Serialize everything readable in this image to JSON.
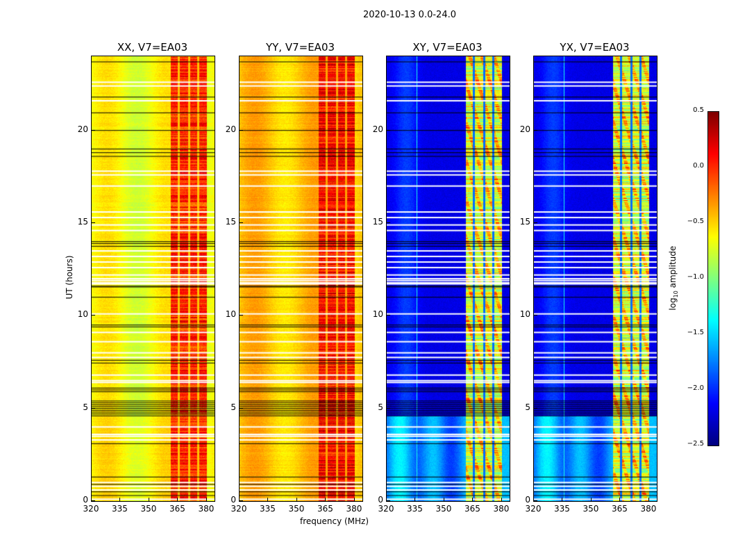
{
  "chart_data": {
    "type": "heatmap",
    "title": "2020-10-13 0.0-24.0",
    "xlabel": "frequency (MHz)",
    "ylabel": "UT (hours)",
    "xlim": [
      320,
      384
    ],
    "ylim": [
      0,
      24
    ],
    "xticks": [
      "320",
      "335",
      "350",
      "365",
      "380"
    ],
    "xtick_values": [
      320,
      335,
      350,
      365,
      380
    ],
    "yticks": [
      "0",
      "5",
      "10",
      "15",
      "20"
    ],
    "ytick_values": [
      0,
      5,
      10,
      15,
      20
    ],
    "colormap": "jet",
    "colorbar": {
      "label": "log10 amplitude",
      "label_main": "log",
      "label_sub": "10",
      "label_rest": " amplitude",
      "range": [
        -2.5,
        0.5
      ],
      "ticks": [
        "0.5",
        "0.0",
        "−0.5",
        "−1.0",
        "−1.5",
        "−2.0",
        "−2.5"
      ],
      "tick_values": [
        0.5,
        0.0,
        -0.5,
        -1.0,
        -1.5,
        -2.0,
        -2.5
      ]
    },
    "panels": [
      {
        "title": "XX, V7=EA03",
        "background_level": -0.65,
        "band_level": 0.0,
        "stripe_level": -0.45,
        "early_level": -0.6
      },
      {
        "title": "YY, V7=EA03",
        "background_level": -0.45,
        "band_level": 0.1,
        "stripe_level": -0.35,
        "early_level": -0.45
      },
      {
        "title": "XY, V7=EA03",
        "background_level": -2.2,
        "band_level": -0.75,
        "stripe_level": -1.8,
        "early_level": -1.75
      },
      {
        "title": "YX, V7=EA03",
        "background_level": -2.2,
        "band_level": -0.75,
        "stripe_level": -1.8,
        "early_level": -1.75
      }
    ],
    "rfi_band_mhz": [
      361,
      380
    ],
    "band_stripes_mhz": [
      365.3,
      370.5,
      375.2
    ],
    "early_period_hours": [
      0,
      4.6
    ],
    "black_flag_hours": [
      23.7,
      21.8,
      20.95,
      20.0,
      19.0,
      18.8,
      18.6,
      14.0,
      13.9,
      13.75,
      11.6,
      11.55,
      11.0,
      9.5,
      9.4,
      7.6,
      7.45,
      6.1,
      6.0,
      5.9,
      5.4,
      5.3,
      5.2,
      5.1,
      5.0,
      4.9,
      4.8,
      4.7,
      4.6,
      3.1,
      1.3,
      0.9,
      0.5,
      0.3
    ],
    "white_flag_hours": [
      22.6,
      22.4,
      21.6,
      17.8,
      17.6,
      17.0,
      15.6,
      15.3,
      14.9,
      14.6,
      13.5,
      13.2,
      12.9,
      12.6,
      12.2,
      12.0,
      11.9,
      11.78,
      11.72,
      10.1,
      9.1,
      8.6,
      8.0,
      7.75,
      6.8,
      6.5,
      6.4,
      4.0,
      3.6,
      3.5,
      3.3,
      1.0,
      0.8,
      0.6,
      0.1
    ]
  }
}
